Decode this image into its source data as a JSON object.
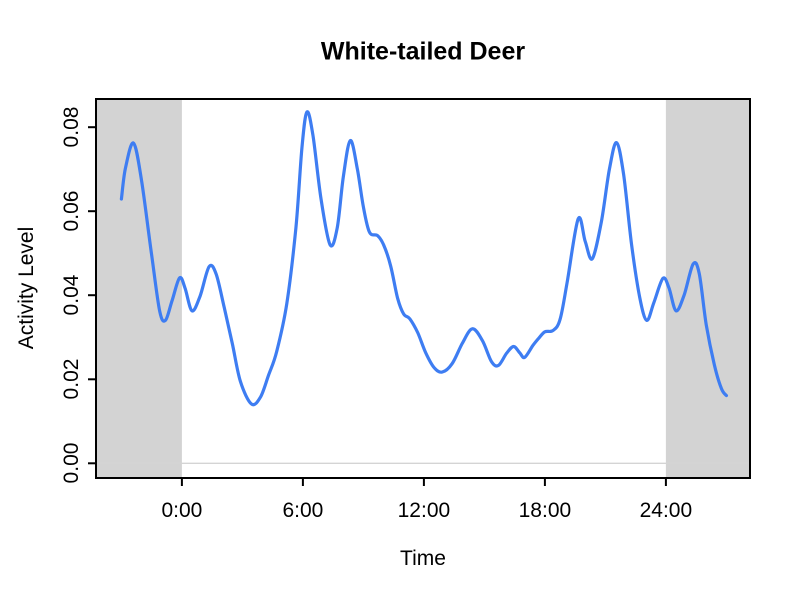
{
  "title": "White-tailed Deer",
  "colors": {
    "curve": "#3e7df2",
    "night_shade": "#d3d3d3",
    "baseline": "#d4d4d4",
    "axis": "#000000",
    "background": "#ffffff"
  },
  "chart_data": {
    "type": "line",
    "title": "White-tailed Deer",
    "xlabel": "Time",
    "ylabel": "Activity Level",
    "x_unit": "hours",
    "xlim": [
      -4.26,
      28.17
    ],
    "ylim": [
      -0.0035,
      0.0867
    ],
    "grid": false,
    "legend": false,
    "x_ticks": [
      {
        "hour": 0,
        "label": "0:00"
      },
      {
        "hour": 6,
        "label": "6:00"
      },
      {
        "hour": 12,
        "label": "12:00"
      },
      {
        "hour": 18,
        "label": "18:00"
      },
      {
        "hour": 24,
        "label": "24:00"
      }
    ],
    "y_ticks": [
      {
        "value": 0.0,
        "label": "0.00"
      },
      {
        "value": 0.02,
        "label": "0.02"
      },
      {
        "value": 0.04,
        "label": "0.04"
      },
      {
        "value": 0.06,
        "label": "0.06"
      },
      {
        "value": 0.08,
        "label": "0.08"
      }
    ],
    "night_shade_hours": [
      [
        -4.26,
        0
      ],
      [
        24,
        28.17
      ]
    ],
    "baseline_value": 0,
    "series": [
      {
        "name": "activity-level",
        "color": "#3e7df2",
        "points": [
          [
            -3.0,
            0.0629
          ],
          [
            -2.8,
            0.0702
          ],
          [
            -2.4,
            0.0762
          ],
          [
            -2.0,
            0.0672
          ],
          [
            -1.5,
            0.0495
          ],
          [
            -1.1,
            0.0362
          ],
          [
            -0.82,
            0.034
          ],
          [
            -0.5,
            0.0385
          ],
          [
            -0.12,
            0.0441
          ],
          [
            0.15,
            0.0418
          ],
          [
            0.5,
            0.0363
          ],
          [
            0.9,
            0.0398
          ],
          [
            1.35,
            0.0468
          ],
          [
            1.7,
            0.045
          ],
          [
            2.1,
            0.037
          ],
          [
            2.5,
            0.0285
          ],
          [
            2.9,
            0.0195
          ],
          [
            3.45,
            0.0141
          ],
          [
            3.9,
            0.0158
          ],
          [
            4.3,
            0.021
          ],
          [
            4.7,
            0.0266
          ],
          [
            5.2,
            0.038
          ],
          [
            5.65,
            0.056
          ],
          [
            5.95,
            0.075
          ],
          [
            6.2,
            0.0836
          ],
          [
            6.5,
            0.078
          ],
          [
            6.9,
            0.0628
          ],
          [
            7.35,
            0.052
          ],
          [
            7.7,
            0.056
          ],
          [
            8.0,
            0.068
          ],
          [
            8.35,
            0.0768
          ],
          [
            8.7,
            0.07
          ],
          [
            9.0,
            0.061
          ],
          [
            9.3,
            0.055
          ],
          [
            9.7,
            0.0542
          ],
          [
            10.0,
            0.052
          ],
          [
            10.35,
            0.047
          ],
          [
            10.7,
            0.0392
          ],
          [
            11.0,
            0.0355
          ],
          [
            11.3,
            0.0344
          ],
          [
            11.7,
            0.031
          ],
          [
            12.1,
            0.0262
          ],
          [
            12.5,
            0.0228
          ],
          [
            12.9,
            0.0217
          ],
          [
            13.4,
            0.0237
          ],
          [
            13.9,
            0.0285
          ],
          [
            14.4,
            0.032
          ],
          [
            14.9,
            0.0292
          ],
          [
            15.35,
            0.0242
          ],
          [
            15.7,
            0.0233
          ],
          [
            16.1,
            0.0262
          ],
          [
            16.45,
            0.0278
          ],
          [
            16.75,
            0.0263
          ],
          [
            17.0,
            0.0252
          ],
          [
            17.4,
            0.028
          ],
          [
            17.7,
            0.0298
          ],
          [
            18.0,
            0.0313
          ],
          [
            18.4,
            0.0316
          ],
          [
            18.75,
            0.0342
          ],
          [
            19.1,
            0.043
          ],
          [
            19.65,
            0.0582
          ],
          [
            20.0,
            0.0528
          ],
          [
            20.35,
            0.0487
          ],
          [
            20.8,
            0.0575
          ],
          [
            21.2,
            0.07
          ],
          [
            21.55,
            0.0763
          ],
          [
            21.9,
            0.0688
          ],
          [
            22.3,
            0.052
          ],
          [
            22.7,
            0.0395
          ],
          [
            23.05,
            0.034
          ],
          [
            23.4,
            0.0382
          ],
          [
            23.85,
            0.044
          ],
          [
            24.15,
            0.0418
          ],
          [
            24.5,
            0.0363
          ],
          [
            24.9,
            0.04
          ],
          [
            25.35,
            0.0474
          ],
          [
            25.65,
            0.0452
          ],
          [
            26.0,
            0.033
          ],
          [
            26.4,
            0.0235
          ],
          [
            26.75,
            0.0178
          ],
          [
            27.0,
            0.0161
          ]
        ]
      }
    ]
  }
}
